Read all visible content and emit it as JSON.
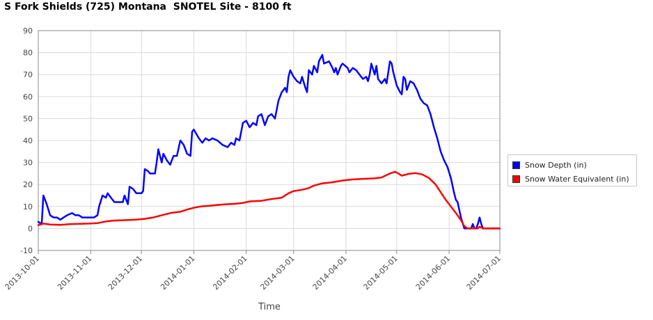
{
  "chart_data": {
    "type": "line",
    "title": "S Fork Shields (725) Montana  SNOTEL Site - 8100 ft",
    "xlabel": "Time",
    "ylabel": "",
    "ylim": [
      -10,
      90
    ],
    "y_ticks": [
      "90",
      "80",
      "70",
      "60",
      "50",
      "40",
      "30",
      "20",
      "10",
      "0",
      "-10"
    ],
    "x_ticks": [
      "2013-10-01",
      "2013-11-01",
      "2013-12-01",
      "2014-01-01",
      "2014-02-01",
      "2014-03-01",
      "2014-04-01",
      "2014-05-01",
      "2014-06-01",
      "2014-07-01"
    ],
    "xlim": [
      "2013-10-01",
      "2014-07-01"
    ],
    "grid": true,
    "legend": "right",
    "series": [
      {
        "name": "Snow Depth (in)",
        "color": "#0000ff",
        "points": [
          [
            "2013-10-01",
            3
          ],
          [
            "2013-10-03",
            2
          ],
          [
            "2013-10-04",
            15
          ],
          [
            "2013-10-06",
            11
          ],
          [
            "2013-10-08",
            6
          ],
          [
            "2013-10-10",
            5
          ],
          [
            "2013-10-12",
            5
          ],
          [
            "2013-10-14",
            4
          ],
          [
            "2013-10-16",
            5
          ],
          [
            "2013-10-18",
            6
          ],
          [
            "2013-10-21",
            7
          ],
          [
            "2013-10-23",
            6
          ],
          [
            "2013-10-25",
            6
          ],
          [
            "2013-10-27",
            5
          ],
          [
            "2013-10-31",
            5
          ],
          [
            "2013-11-03",
            5
          ],
          [
            "2013-11-05",
            6
          ],
          [
            "2013-11-06",
            10
          ],
          [
            "2013-11-08",
            15
          ],
          [
            "2013-11-10",
            14
          ],
          [
            "2013-11-11",
            16
          ],
          [
            "2013-11-13",
            14
          ],
          [
            "2013-11-15",
            12
          ],
          [
            "2013-11-20",
            12
          ],
          [
            "2013-11-21",
            15
          ],
          [
            "2013-11-23",
            11
          ],
          [
            "2013-11-24",
            19
          ],
          [
            "2013-11-26",
            18
          ],
          [
            "2013-11-28",
            16
          ],
          [
            "2013-12-01",
            16
          ],
          [
            "2013-12-02",
            17
          ],
          [
            "2013-12-03",
            27
          ],
          [
            "2013-12-05",
            26
          ],
          [
            "2013-12-06",
            25
          ],
          [
            "2013-12-09",
            25
          ],
          [
            "2013-12-10",
            30
          ],
          [
            "2013-12-11",
            36
          ],
          [
            "2013-12-13",
            30
          ],
          [
            "2013-12-14",
            34
          ],
          [
            "2013-12-16",
            31
          ],
          [
            "2013-12-18",
            29
          ],
          [
            "2013-12-20",
            33
          ],
          [
            "2013-12-22",
            33
          ],
          [
            "2013-12-24",
            40
          ],
          [
            "2013-12-26",
            38
          ],
          [
            "2013-12-28",
            34
          ],
          [
            "2013-12-30",
            33
          ],
          [
            "2013-12-31",
            44
          ],
          [
            "2014-01-01",
            45
          ],
          [
            "2014-01-04",
            41
          ],
          [
            "2014-01-06",
            39
          ],
          [
            "2014-01-08",
            41
          ],
          [
            "2014-01-10",
            40
          ],
          [
            "2014-01-12",
            41
          ],
          [
            "2014-01-15",
            40
          ],
          [
            "2014-01-18",
            38
          ],
          [
            "2014-01-21",
            37
          ],
          [
            "2014-01-23",
            39
          ],
          [
            "2014-01-25",
            38
          ],
          [
            "2014-01-26",
            41
          ],
          [
            "2014-01-28",
            40
          ],
          [
            "2014-01-30",
            48
          ],
          [
            "2014-02-01",
            49
          ],
          [
            "2014-02-03",
            46
          ],
          [
            "2014-02-05",
            48
          ],
          [
            "2014-02-07",
            47
          ],
          [
            "2014-02-08",
            51
          ],
          [
            "2014-02-10",
            52
          ],
          [
            "2014-02-12",
            47
          ],
          [
            "2014-02-14",
            51
          ],
          [
            "2014-02-16",
            52
          ],
          [
            "2014-02-18",
            50
          ],
          [
            "2014-02-20",
            58
          ],
          [
            "2014-02-22",
            62
          ],
          [
            "2014-02-24",
            64
          ],
          [
            "2014-02-25",
            62
          ],
          [
            "2014-02-26",
            69
          ],
          [
            "2014-02-27",
            72
          ],
          [
            "2014-03-01",
            69
          ],
          [
            "2014-03-03",
            67
          ],
          [
            "2014-03-05",
            66
          ],
          [
            "2014-03-06",
            69
          ],
          [
            "2014-03-08",
            64
          ],
          [
            "2014-03-09",
            62
          ],
          [
            "2014-03-10",
            72
          ],
          [
            "2014-03-12",
            70
          ],
          [
            "2014-03-13",
            74
          ],
          [
            "2014-03-15",
            71
          ],
          [
            "2014-03-16",
            76
          ],
          [
            "2014-03-18",
            79
          ],
          [
            "2014-03-19",
            75
          ],
          [
            "2014-03-22",
            76
          ],
          [
            "2014-03-24",
            73
          ],
          [
            "2014-03-25",
            71
          ],
          [
            "2014-03-26",
            73
          ],
          [
            "2014-03-27",
            70
          ],
          [
            "2014-03-29",
            74
          ],
          [
            "2014-03-30",
            75
          ],
          [
            "2014-04-02",
            73
          ],
          [
            "2014-04-03",
            71
          ],
          [
            "2014-04-05",
            73
          ],
          [
            "2014-04-07",
            72
          ],
          [
            "2014-04-09",
            70
          ],
          [
            "2014-04-11",
            68
          ],
          [
            "2014-04-13",
            69
          ],
          [
            "2014-04-14",
            67
          ],
          [
            "2014-04-15",
            70
          ],
          [
            "2014-04-16",
            75
          ],
          [
            "2014-04-18",
            70
          ],
          [
            "2014-04-19",
            74
          ],
          [
            "2014-04-20",
            68
          ],
          [
            "2014-04-22",
            66
          ],
          [
            "2014-04-24",
            68
          ],
          [
            "2014-04-25",
            66
          ],
          [
            "2014-04-27",
            76
          ],
          [
            "2014-04-28",
            75
          ],
          [
            "2014-04-29",
            71
          ],
          [
            "2014-05-01",
            65
          ],
          [
            "2014-05-03",
            62
          ],
          [
            "2014-05-04",
            61
          ],
          [
            "2014-05-05",
            69
          ],
          [
            "2014-05-06",
            68
          ],
          [
            "2014-05-07",
            63
          ],
          [
            "2014-05-09",
            67
          ],
          [
            "2014-05-11",
            66
          ],
          [
            "2014-05-13",
            63
          ],
          [
            "2014-05-15",
            59
          ],
          [
            "2014-05-17",
            57
          ],
          [
            "2014-05-19",
            56
          ],
          [
            "2014-05-21",
            52
          ],
          [
            "2014-05-23",
            46
          ],
          [
            "2014-05-25",
            41
          ],
          [
            "2014-05-27",
            35
          ],
          [
            "2014-05-29",
            31
          ],
          [
            "2014-05-31",
            28
          ],
          [
            "2014-06-02",
            23
          ],
          [
            "2014-06-04",
            16
          ],
          [
            "2014-06-05",
            13
          ],
          [
            "2014-06-06",
            12
          ],
          [
            "2014-06-08",
            5
          ],
          [
            "2014-06-10",
            0
          ],
          [
            "2014-06-12",
            0
          ],
          [
            "2014-06-14",
            0
          ],
          [
            "2014-06-15",
            2
          ],
          [
            "2014-06-16",
            0
          ],
          [
            "2014-06-17",
            0
          ],
          [
            "2014-06-18",
            2
          ],
          [
            "2014-06-19",
            5
          ],
          [
            "2014-06-20",
            2
          ],
          [
            "2014-06-21",
            0
          ],
          [
            "2014-06-24",
            0
          ],
          [
            "2014-06-27",
            0
          ],
          [
            "2014-07-01",
            0
          ]
        ]
      },
      {
        "name": "Snow Water Equivalent (in)",
        "color": "#ff0000",
        "points": [
          [
            "2013-10-01",
            1.5
          ],
          [
            "2013-10-04",
            2.2
          ],
          [
            "2013-10-08",
            1.8
          ],
          [
            "2013-10-14",
            1.6
          ],
          [
            "2013-10-20",
            2.0
          ],
          [
            "2013-10-31",
            2.2
          ],
          [
            "2013-11-05",
            2.4
          ],
          [
            "2013-11-10",
            3.2
          ],
          [
            "2013-11-15",
            3.6
          ],
          [
            "2013-11-22",
            3.8
          ],
          [
            "2013-11-28",
            4.0
          ],
          [
            "2013-12-03",
            4.4
          ],
          [
            "2013-12-08",
            5.0
          ],
          [
            "2013-12-12",
            5.8
          ],
          [
            "2013-12-18",
            7.0
          ],
          [
            "2013-12-24",
            7.6
          ],
          [
            "2013-12-28",
            8.6
          ],
          [
            "2014-01-01",
            9.4
          ],
          [
            "2014-01-05",
            10.0
          ],
          [
            "2014-01-10",
            10.3
          ],
          [
            "2014-01-15",
            10.7
          ],
          [
            "2014-01-20",
            11.0
          ],
          [
            "2014-01-25",
            11.2
          ],
          [
            "2014-01-30",
            11.6
          ],
          [
            "2014-02-03",
            12.3
          ],
          [
            "2014-02-10",
            12.6
          ],
          [
            "2014-02-16",
            13.4
          ],
          [
            "2014-02-22",
            14.0
          ],
          [
            "2014-02-26",
            16.0
          ],
          [
            "2014-03-01",
            17.0
          ],
          [
            "2014-03-06",
            17.6
          ],
          [
            "2014-03-10",
            18.4
          ],
          [
            "2014-03-13",
            19.5
          ],
          [
            "2014-03-18",
            20.5
          ],
          [
            "2014-03-24",
            21.0
          ],
          [
            "2014-03-30",
            21.8
          ],
          [
            "2014-04-05",
            22.3
          ],
          [
            "2014-04-12",
            22.6
          ],
          [
            "2014-04-18",
            22.8
          ],
          [
            "2014-04-22",
            23.2
          ],
          [
            "2014-04-27",
            25.0
          ],
          [
            "2014-04-30",
            25.8
          ],
          [
            "2014-05-02",
            25.0
          ],
          [
            "2014-05-04",
            24.0
          ],
          [
            "2014-05-08",
            24.8
          ],
          [
            "2014-05-12",
            25.2
          ],
          [
            "2014-05-16",
            24.6
          ],
          [
            "2014-05-20",
            23.0
          ],
          [
            "2014-05-24",
            20.0
          ],
          [
            "2014-05-27",
            16.5
          ],
          [
            "2014-05-30",
            13.0
          ],
          [
            "2014-06-02",
            10.0
          ],
          [
            "2014-06-05",
            7.0
          ],
          [
            "2014-06-08",
            3.8
          ],
          [
            "2014-06-10",
            1.0
          ],
          [
            "2014-06-12",
            0
          ],
          [
            "2014-06-18",
            0
          ],
          [
            "2014-06-19",
            0.8
          ],
          [
            "2014-06-21",
            0
          ],
          [
            "2014-07-01",
            0
          ]
        ]
      }
    ]
  }
}
